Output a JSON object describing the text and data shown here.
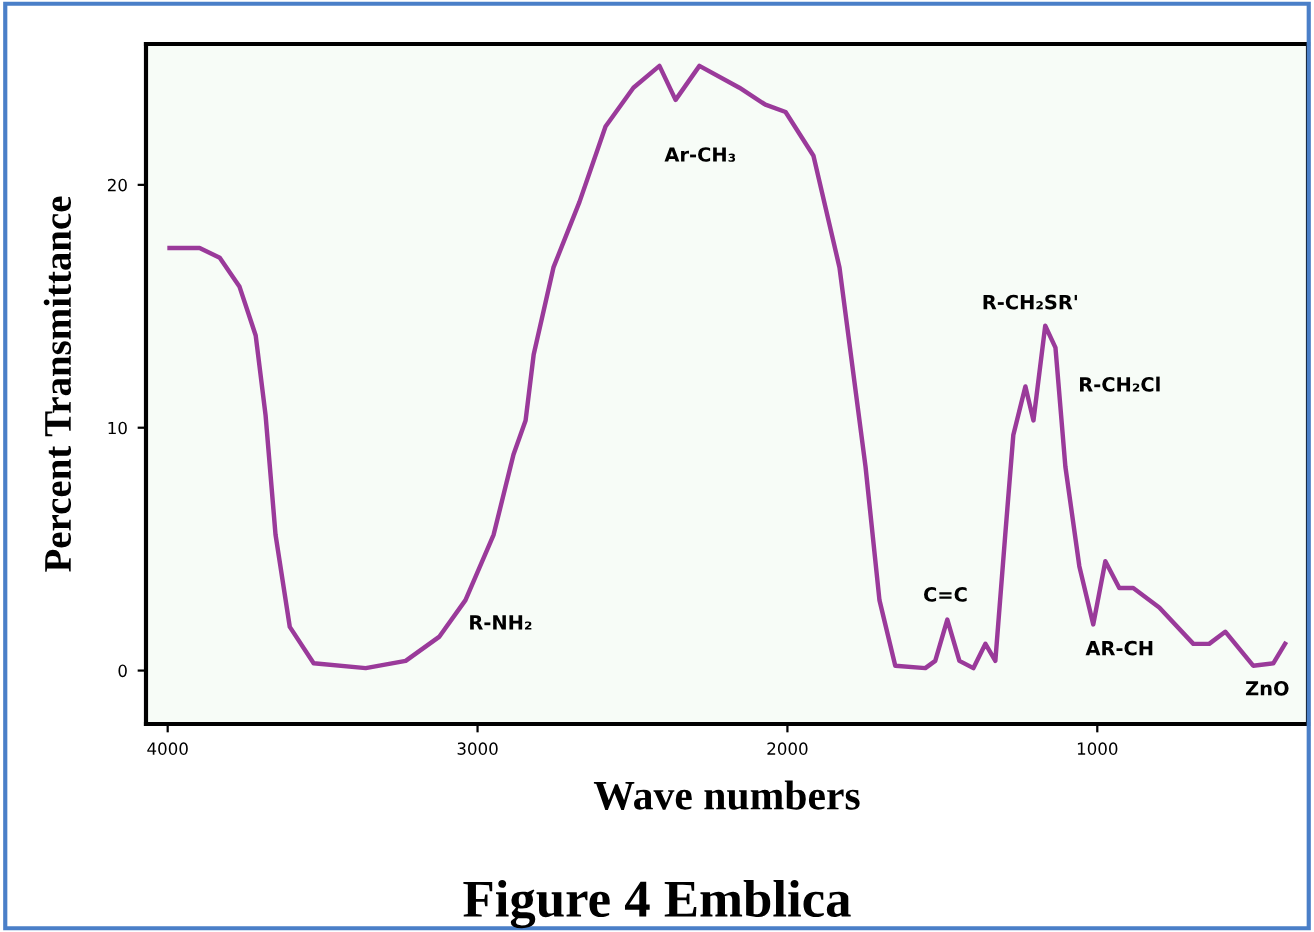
{
  "chart_data": {
    "type": "line",
    "title": "Figure 4 Emblica",
    "xlabel": "Wave numbers",
    "ylabel": "Percent Transmittance",
    "xlim": [
      4070,
      320
    ],
    "xticks": [
      4000,
      3000,
      2000,
      1000
    ],
    "ylim": [
      -2.2,
      25.8
    ],
    "yticks": [
      0,
      10,
      20
    ],
    "grid": false,
    "series": [
      {
        "color": "#9a3a9a",
        "x": [
          3994,
          3897,
          3832,
          3768,
          3716,
          3684,
          3652,
          3606,
          3529,
          3361,
          3232,
          3123,
          3039,
          2948,
          2884,
          2845,
          2819,
          2755,
          2671,
          2587,
          2497,
          2413,
          2361,
          2284,
          2155,
          2071,
          2006,
          1916,
          1832,
          1748,
          1703,
          1652,
          1555,
          1523,
          1484,
          1445,
          1400,
          1361,
          1329,
          1297,
          1271,
          1232,
          1206,
          1168,
          1135,
          1103,
          1058,
          1013,
          974,
          929,
          884,
          800,
          690,
          639,
          587,
          497,
          432,
          394
        ],
        "values": [
          17.4,
          17.4,
          17.0,
          15.8,
          13.8,
          10.5,
          5.6,
          1.8,
          0.3,
          0.1,
          0.4,
          1.4,
          2.9,
          5.6,
          8.9,
          10.3,
          13.0,
          16.6,
          19.3,
          22.4,
          24.0,
          24.9,
          23.5,
          24.9,
          24.0,
          23.3,
          23.0,
          21.2,
          16.6,
          8.4,
          2.9,
          0.2,
          0.1,
          0.4,
          2.1,
          0.4,
          0.1,
          1.1,
          0.4,
          5.6,
          9.7,
          11.7,
          10.3,
          14.2,
          13.3,
          8.4,
          4.3,
          1.9,
          4.5,
          3.4,
          3.4,
          2.6,
          1.1,
          1.1,
          1.6,
          0.2,
          0.3,
          1.1
        ]
      }
    ],
    "annotations": [
      "R-NH₂",
      "Ar-CH₃",
      "C=C",
      "R-CH₂SR'",
      "R-CH₂Cl",
      "AR-CH",
      "ZnO"
    ]
  }
}
